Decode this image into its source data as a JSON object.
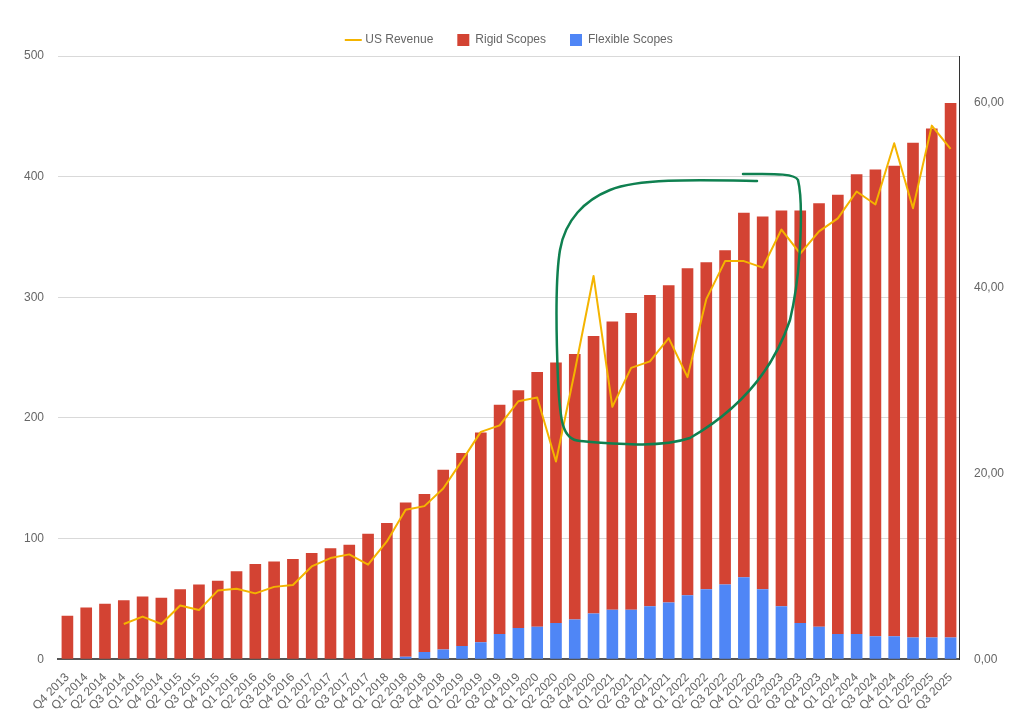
{
  "chart_data": {
    "type": "bar",
    "stacked": true,
    "legend": "top",
    "grid": "y",
    "marker": "none",
    "line_style": "solid",
    "categories": [
      "Q4 2013",
      "Q1 2014",
      "Q2 2014",
      "Q3 2014",
      "Q1 2015",
      "Q4 2014",
      "Q2 1015",
      "Q3 2015",
      "Q4 2015",
      "Q1 2016",
      "Q2 2016",
      "Q3 2016",
      "Q4 2016",
      "Q1 2017",
      "Q2 2017",
      "Q3 2017",
      "Q4 2017",
      "Q1 2018",
      "Q2 2018",
      "Q3 2018",
      "Q4 2018",
      "Q1 2019",
      "Q2 2019",
      "Q3 2019",
      "Q4 2019",
      "Q1 2020",
      "Q2 2020",
      "Q3 2020",
      "Q4 2020",
      "Q1 2021",
      "Q2 2021",
      "Q3 2021",
      "Q4 2021",
      "Q1 2022",
      "Q2 2022",
      "Q3 2022",
      "Q4 2022",
      "Q1 2023",
      "Q2 2023",
      "Q3 2023",
      "Q4 2023",
      "Q1 2024",
      "Q2 2024",
      "Q3 2024",
      "Q4 2024",
      "Q1 2025",
      "Q2 2025",
      "Q3 2025"
    ],
    "ylim": [
      0,
      500
    ],
    "yticks": [
      0,
      100,
      200,
      300,
      400,
      500
    ],
    "y2lim": [
      0,
      65
    ],
    "y2ticks": [
      {
        "value": 0,
        "label": "0,00"
      },
      {
        "value": 20,
        "label": "20,00"
      },
      {
        "value": 40,
        "label": "40,00"
      },
      {
        "value": 60,
        "label": "60,00"
      }
    ],
    "series": [
      {
        "name": "US Revenue",
        "type": "line",
        "axis": "y2",
        "color": "#f4b400",
        "values": [
          null,
          null,
          null,
          3.8,
          4.6,
          3.8,
          5.8,
          5.3,
          7.4,
          7.6,
          7.1,
          7.8,
          8.0,
          10.0,
          10.9,
          11.3,
          10.2,
          12.7,
          16.1,
          16.5,
          18.4,
          21.4,
          24.5,
          25.2,
          27.8,
          28.2,
          21.3,
          31,
          41.3,
          27.2,
          31.4,
          32.1,
          34.6,
          30.4,
          38.8,
          42.9,
          42.9,
          42.2,
          46.3,
          43.7,
          46.1,
          47.5,
          50.4,
          49.0,
          55.6,
          48.6,
          57.5,
          55.0
        ]
      },
      {
        "name": "Flexible Scopes",
        "color": "#4f86f6",
        "values": [
          0,
          0,
          0,
          0,
          0,
          0,
          0,
          0,
          0,
          0,
          0,
          0,
          0,
          0,
          0,
          0,
          0,
          0,
          2,
          6,
          8,
          11,
          14,
          21,
          26,
          27,
          30,
          33,
          38,
          41,
          41,
          44,
          47,
          53,
          58,
          62,
          68,
          58,
          44,
          30,
          27,
          21,
          21,
          19,
          19,
          18,
          18,
          18
        ]
      },
      {
        "name": "Rigid Scopes",
        "color": "#d34333",
        "values": [
          36,
          43,
          46,
          49,
          52,
          51,
          58,
          62,
          65,
          73,
          79,
          81,
          83,
          88,
          92,
          95,
          104,
          113,
          128,
          131,
          149,
          160,
          174,
          190,
          197,
          211,
          216,
          220,
          230,
          239,
          246,
          258,
          263,
          271,
          271,
          277,
          302,
          309,
          328,
          342,
          351,
          364,
          381,
          387,
          390,
          410,
          422,
          443
        ]
      }
    ]
  }
}
